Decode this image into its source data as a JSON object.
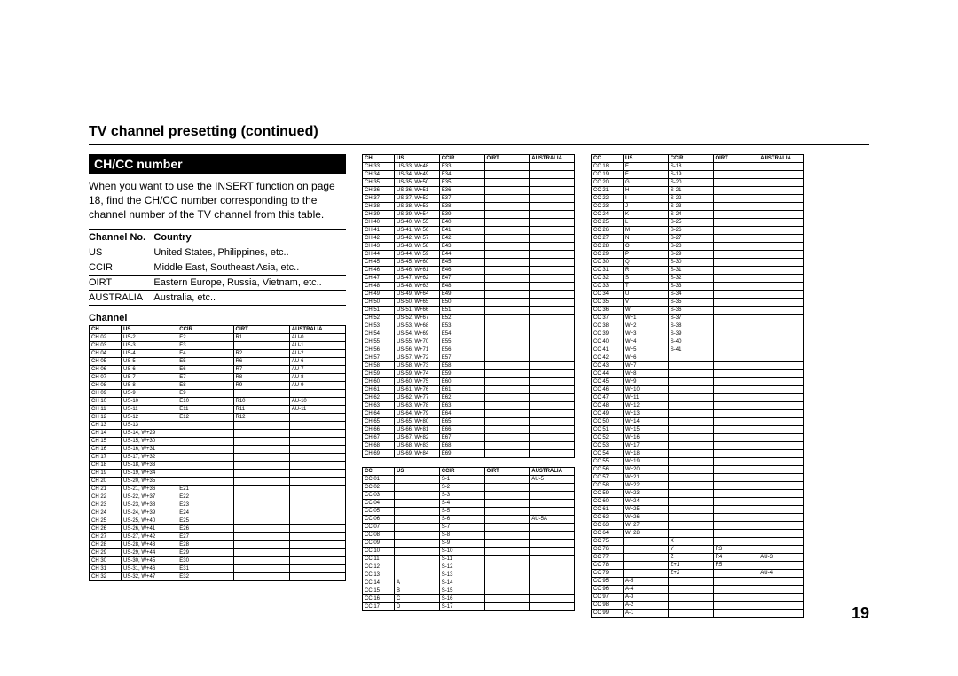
{
  "page_title": "TV channel presetting (continued)",
  "section_title": "CH/CC number",
  "intro_text": "When you want to use the INSERT function on page 18, find the CH/CC number corresponding to the channel number of the TV channel from this table.",
  "country_table": {
    "headers": [
      "Channel No.",
      "Country"
    ],
    "rows": [
      [
        "US",
        "United States, Philippines, etc.."
      ],
      [
        "CCIR",
        "Middle East, Southeast Asia, etc.."
      ],
      [
        "OIRT",
        "Eastern Europe, Russia, Vietnam, etc.."
      ],
      [
        "AUSTRALIA",
        "Australia, etc.."
      ]
    ]
  },
  "channel_heading": "Channel",
  "ch_headers": [
    "CH",
    "US",
    "CCIR",
    "OIRT",
    "AUSTRALIA"
  ],
  "cc_headers": [
    "CC",
    "US",
    "CCIR",
    "OIRT",
    "AUSTRALIA"
  ],
  "ch_table_a": [
    [
      "CH 02",
      "US-2",
      "E2",
      "R1",
      "AU-0"
    ],
    [
      "CH 03",
      "US-3",
      "E3",
      "",
      "AU-1"
    ],
    [
      "CH 04",
      "US-4",
      "E4",
      "R2",
      "AU-2"
    ],
    [
      "CH 05",
      "US-5",
      "E5",
      "R6",
      "AU-6"
    ],
    [
      "CH 06",
      "US-6",
      "E6",
      "R7",
      "AU-7"
    ],
    [
      "CH 07",
      "US-7",
      "E7",
      "R8",
      "AU-8"
    ],
    [
      "CH 08",
      "US-8",
      "E8",
      "R9",
      "AU-9"
    ],
    [
      "CH 09",
      "US-9",
      "E9",
      "",
      ""
    ],
    [
      "CH 10",
      "US-10",
      "E10",
      "R10",
      "AU-10"
    ],
    [
      "CH 11",
      "US-11",
      "E11",
      "R11",
      "AU-11"
    ],
    [
      "CH 12",
      "US-12",
      "E12",
      "R12",
      ""
    ],
    [
      "CH 13",
      "US-13",
      "",
      "",
      ""
    ],
    [
      "CH 14",
      "US-14, W+29",
      "",
      "",
      ""
    ],
    [
      "CH 15",
      "US-15, W+30",
      "",
      "",
      ""
    ],
    [
      "CH 16",
      "US-16, W+31",
      "",
      "",
      ""
    ],
    [
      "CH 17",
      "US-17, W+32",
      "",
      "",
      ""
    ],
    [
      "CH 18",
      "US-18, W+33",
      "",
      "",
      ""
    ],
    [
      "CH 19",
      "US-19, W+34",
      "",
      "",
      ""
    ],
    [
      "CH 20",
      "US-20, W+35",
      "",
      "",
      ""
    ],
    [
      "CH 21",
      "US-21, W+36",
      "E21",
      "",
      ""
    ],
    [
      "CH 22",
      "US-22, W+37",
      "E22",
      "",
      ""
    ],
    [
      "CH 23",
      "US-23, W+38",
      "E23",
      "",
      ""
    ],
    [
      "CH 24",
      "US-24, W+39",
      "E24",
      "",
      ""
    ],
    [
      "CH 25",
      "US-25, W+40",
      "E25",
      "",
      ""
    ],
    [
      "CH 26",
      "US-26, W+41",
      "E26",
      "",
      ""
    ],
    [
      "CH 27",
      "US-27, W+42",
      "E27",
      "",
      ""
    ],
    [
      "CH 28",
      "US-28, W+43",
      "E28",
      "",
      ""
    ],
    [
      "CH 29",
      "US-29, W+44",
      "E29",
      "",
      ""
    ],
    [
      "CH 30",
      "US-30, W+45",
      "E30",
      "",
      ""
    ],
    [
      "CH 31",
      "US-31, W+46",
      "E31",
      "",
      ""
    ],
    [
      "CH 32",
      "US-32, W+47",
      "E32",
      "",
      ""
    ]
  ],
  "ch_table_b": [
    [
      "CH 33",
      "US-33, W+48",
      "E33",
      "",
      ""
    ],
    [
      "CH 34",
      "US-34, W+49",
      "E34",
      "",
      ""
    ],
    [
      "CH 35",
      "US-35, W+50",
      "E35",
      "",
      ""
    ],
    [
      "CH 36",
      "US-36, W+51",
      "E36",
      "",
      ""
    ],
    [
      "CH 37",
      "US-37, W+52",
      "E37",
      "",
      ""
    ],
    [
      "CH 38",
      "US-38, W+53",
      "E38",
      "",
      ""
    ],
    [
      "CH 39",
      "US-39, W+54",
      "E39",
      "",
      ""
    ],
    [
      "CH 40",
      "US-40, W+55",
      "E40",
      "",
      ""
    ],
    [
      "CH 41",
      "US-41, W+56",
      "E41",
      "",
      ""
    ],
    [
      "CH 42",
      "US-42, W+57",
      "E42",
      "",
      ""
    ],
    [
      "CH 43",
      "US-43, W+58",
      "E43",
      "",
      ""
    ],
    [
      "CH 44",
      "US-44, W+59",
      "E44",
      "",
      ""
    ],
    [
      "CH 45",
      "US-45, W+60",
      "E45",
      "",
      ""
    ],
    [
      "CH 46",
      "US-46, W+61",
      "E46",
      "",
      ""
    ],
    [
      "CH 47",
      "US-47, W+62",
      "E47",
      "",
      ""
    ],
    [
      "CH 48",
      "US-48, W+63",
      "E48",
      "",
      ""
    ],
    [
      "CH 49",
      "US-49, W+64",
      "E49",
      "",
      ""
    ],
    [
      "CH 50",
      "US-50, W+65",
      "E50",
      "",
      ""
    ],
    [
      "CH 51",
      "US-51, W+66",
      "E51",
      "",
      ""
    ],
    [
      "CH 52",
      "US-52, W+67",
      "E52",
      "",
      ""
    ],
    [
      "CH 53",
      "US-53, W+68",
      "E53",
      "",
      ""
    ],
    [
      "CH 54",
      "US-54, W+69",
      "E54",
      "",
      ""
    ],
    [
      "CH 55",
      "US-55, W+70",
      "E55",
      "",
      ""
    ],
    [
      "CH 56",
      "US-56, W+71",
      "E56",
      "",
      ""
    ],
    [
      "CH 57",
      "US-57, W+72",
      "E57",
      "",
      ""
    ],
    [
      "CH 58",
      "US-58, W+73",
      "E58",
      "",
      ""
    ],
    [
      "CH 59",
      "US-59, W+74",
      "E59",
      "",
      ""
    ],
    [
      "CH 60",
      "US-60, W+75",
      "E60",
      "",
      ""
    ],
    [
      "CH 61",
      "US-61, W+76",
      "E61",
      "",
      ""
    ],
    [
      "CH 62",
      "US-62, W+77",
      "E62",
      "",
      ""
    ],
    [
      "CH 63",
      "US-63, W+78",
      "E63",
      "",
      ""
    ],
    [
      "CH 64",
      "US-64, W+79",
      "E64",
      "",
      ""
    ],
    [
      "CH 65",
      "US-65, W+80",
      "E65",
      "",
      ""
    ],
    [
      "CH 66",
      "US-66, W+81",
      "E66",
      "",
      ""
    ],
    [
      "CH 67",
      "US-67, W+82",
      "E67",
      "",
      ""
    ],
    [
      "CH 68",
      "US-68, W+83",
      "E68",
      "",
      ""
    ],
    [
      "CH 69",
      "US-69, W+84",
      "E69",
      "",
      ""
    ]
  ],
  "cc_table_a": [
    [
      "CC 01",
      "",
      "S-1",
      "",
      "AU-5"
    ],
    [
      "CC 02",
      "",
      "S-2",
      "",
      ""
    ],
    [
      "CC 03",
      "",
      "S-3",
      "",
      ""
    ],
    [
      "CC 04",
      "",
      "S-4",
      "",
      ""
    ],
    [
      "CC 05",
      "",
      "S-5",
      "",
      ""
    ],
    [
      "CC 06",
      "",
      "S-6",
      "",
      "AU-5A"
    ],
    [
      "CC 07",
      "",
      "S-7",
      "",
      ""
    ],
    [
      "CC 08",
      "",
      "S-8",
      "",
      ""
    ],
    [
      "CC 09",
      "",
      "S-9",
      "",
      ""
    ],
    [
      "CC 10",
      "",
      "S-10",
      "",
      ""
    ],
    [
      "CC 11",
      "",
      "S-11",
      "",
      ""
    ],
    [
      "CC 12",
      "",
      "S-12",
      "",
      ""
    ],
    [
      "CC 13",
      "",
      "S-13",
      "",
      ""
    ],
    [
      "CC 14",
      "A",
      "S-14",
      "",
      ""
    ],
    [
      "CC 15",
      "B",
      "S-15",
      "",
      ""
    ],
    [
      "CC 16",
      "C",
      "S-16",
      "",
      ""
    ],
    [
      "CC 17",
      "D",
      "S-17",
      "",
      ""
    ]
  ],
  "cc_table_b": [
    [
      "CC 18",
      "E",
      "S-18",
      "",
      ""
    ],
    [
      "CC 19",
      "F",
      "S-19",
      "",
      ""
    ],
    [
      "CC 20",
      "G",
      "S-20",
      "",
      ""
    ],
    [
      "CC 21",
      "H",
      "S-21",
      "",
      ""
    ],
    [
      "CC 22",
      "I",
      "S-22",
      "",
      ""
    ],
    [
      "CC 23",
      "J",
      "S-23",
      "",
      ""
    ],
    [
      "CC 24",
      "K",
      "S-24",
      "",
      ""
    ],
    [
      "CC 25",
      "L",
      "S-25",
      "",
      ""
    ],
    [
      "CC 26",
      "M",
      "S-26",
      "",
      ""
    ],
    [
      "CC 27",
      "N",
      "S-27",
      "",
      ""
    ],
    [
      "CC 28",
      "O",
      "S-28",
      "",
      ""
    ],
    [
      "CC 29",
      "P",
      "S-29",
      "",
      ""
    ],
    [
      "CC 30",
      "Q",
      "S-30",
      "",
      ""
    ],
    [
      "CC 31",
      "R",
      "S-31",
      "",
      ""
    ],
    [
      "CC 32",
      "S",
      "S-32",
      "",
      ""
    ],
    [
      "CC 33",
      "T",
      "S-33",
      "",
      ""
    ],
    [
      "CC 34",
      "U",
      "S-34",
      "",
      ""
    ],
    [
      "CC 35",
      "V",
      "S-35",
      "",
      ""
    ],
    [
      "CC 36",
      "W",
      "S-36",
      "",
      ""
    ],
    [
      "CC 37",
      "W+1",
      "S-37",
      "",
      ""
    ],
    [
      "CC 38",
      "W+2",
      "S-38",
      "",
      ""
    ],
    [
      "CC 39",
      "W+3",
      "S-39",
      "",
      ""
    ],
    [
      "CC 40",
      "W+4",
      "S-40",
      "",
      ""
    ],
    [
      "CC 41",
      "W+5",
      "S-41",
      "",
      ""
    ],
    [
      "CC 42",
      "W+6",
      "",
      "",
      ""
    ],
    [
      "CC 43",
      "W+7",
      "",
      "",
      ""
    ],
    [
      "CC 44",
      "W+8",
      "",
      "",
      ""
    ],
    [
      "CC 45",
      "W+9",
      "",
      "",
      ""
    ],
    [
      "CC 46",
      "W+10",
      "",
      "",
      ""
    ],
    [
      "CC 47",
      "W+11",
      "",
      "",
      ""
    ],
    [
      "CC 48",
      "W+12",
      "",
      "",
      ""
    ],
    [
      "CC 49",
      "W+13",
      "",
      "",
      ""
    ],
    [
      "CC 50",
      "W+14",
      "",
      "",
      ""
    ],
    [
      "CC 51",
      "W+15",
      "",
      "",
      ""
    ],
    [
      "CC 52",
      "W+16",
      "",
      "",
      ""
    ],
    [
      "CC 53",
      "W+17",
      "",
      "",
      ""
    ],
    [
      "CC 54",
      "W+18",
      "",
      "",
      ""
    ],
    [
      "CC 55",
      "W+19",
      "",
      "",
      ""
    ],
    [
      "CC 56",
      "W+20",
      "",
      "",
      ""
    ],
    [
      "CC 57",
      "W+21",
      "",
      "",
      ""
    ],
    [
      "CC 58",
      "W+22",
      "",
      "",
      ""
    ],
    [
      "CC 59",
      "W+23",
      "",
      "",
      ""
    ],
    [
      "CC 60",
      "W+24",
      "",
      "",
      ""
    ],
    [
      "CC 61",
      "W+25",
      "",
      "",
      ""
    ],
    [
      "CC 62",
      "W+26",
      "",
      "",
      ""
    ],
    [
      "CC 63",
      "W+27",
      "",
      "",
      ""
    ],
    [
      "CC 64",
      "W+28",
      "",
      "",
      ""
    ],
    [
      "CC 75",
      "",
      "X",
      "",
      ""
    ],
    [
      "CC 76",
      "",
      "Y",
      "R3",
      ""
    ],
    [
      "CC 77",
      "",
      "Z",
      "R4",
      "AU-3"
    ],
    [
      "CC 78",
      "",
      "Z+1",
      "R5",
      ""
    ],
    [
      "CC 79",
      "",
      "Z+2",
      "",
      "AU-4"
    ],
    [
      "CC 95",
      "A-5",
      "",
      "",
      ""
    ],
    [
      "CC 96",
      "A-4",
      "",
      "",
      ""
    ],
    [
      "CC 97",
      "A-3",
      "",
      "",
      ""
    ],
    [
      "CC 98",
      "A-2",
      "",
      "",
      ""
    ],
    [
      "CC 99",
      "A-1",
      "",
      "",
      ""
    ]
  ],
  "page_number": "19"
}
